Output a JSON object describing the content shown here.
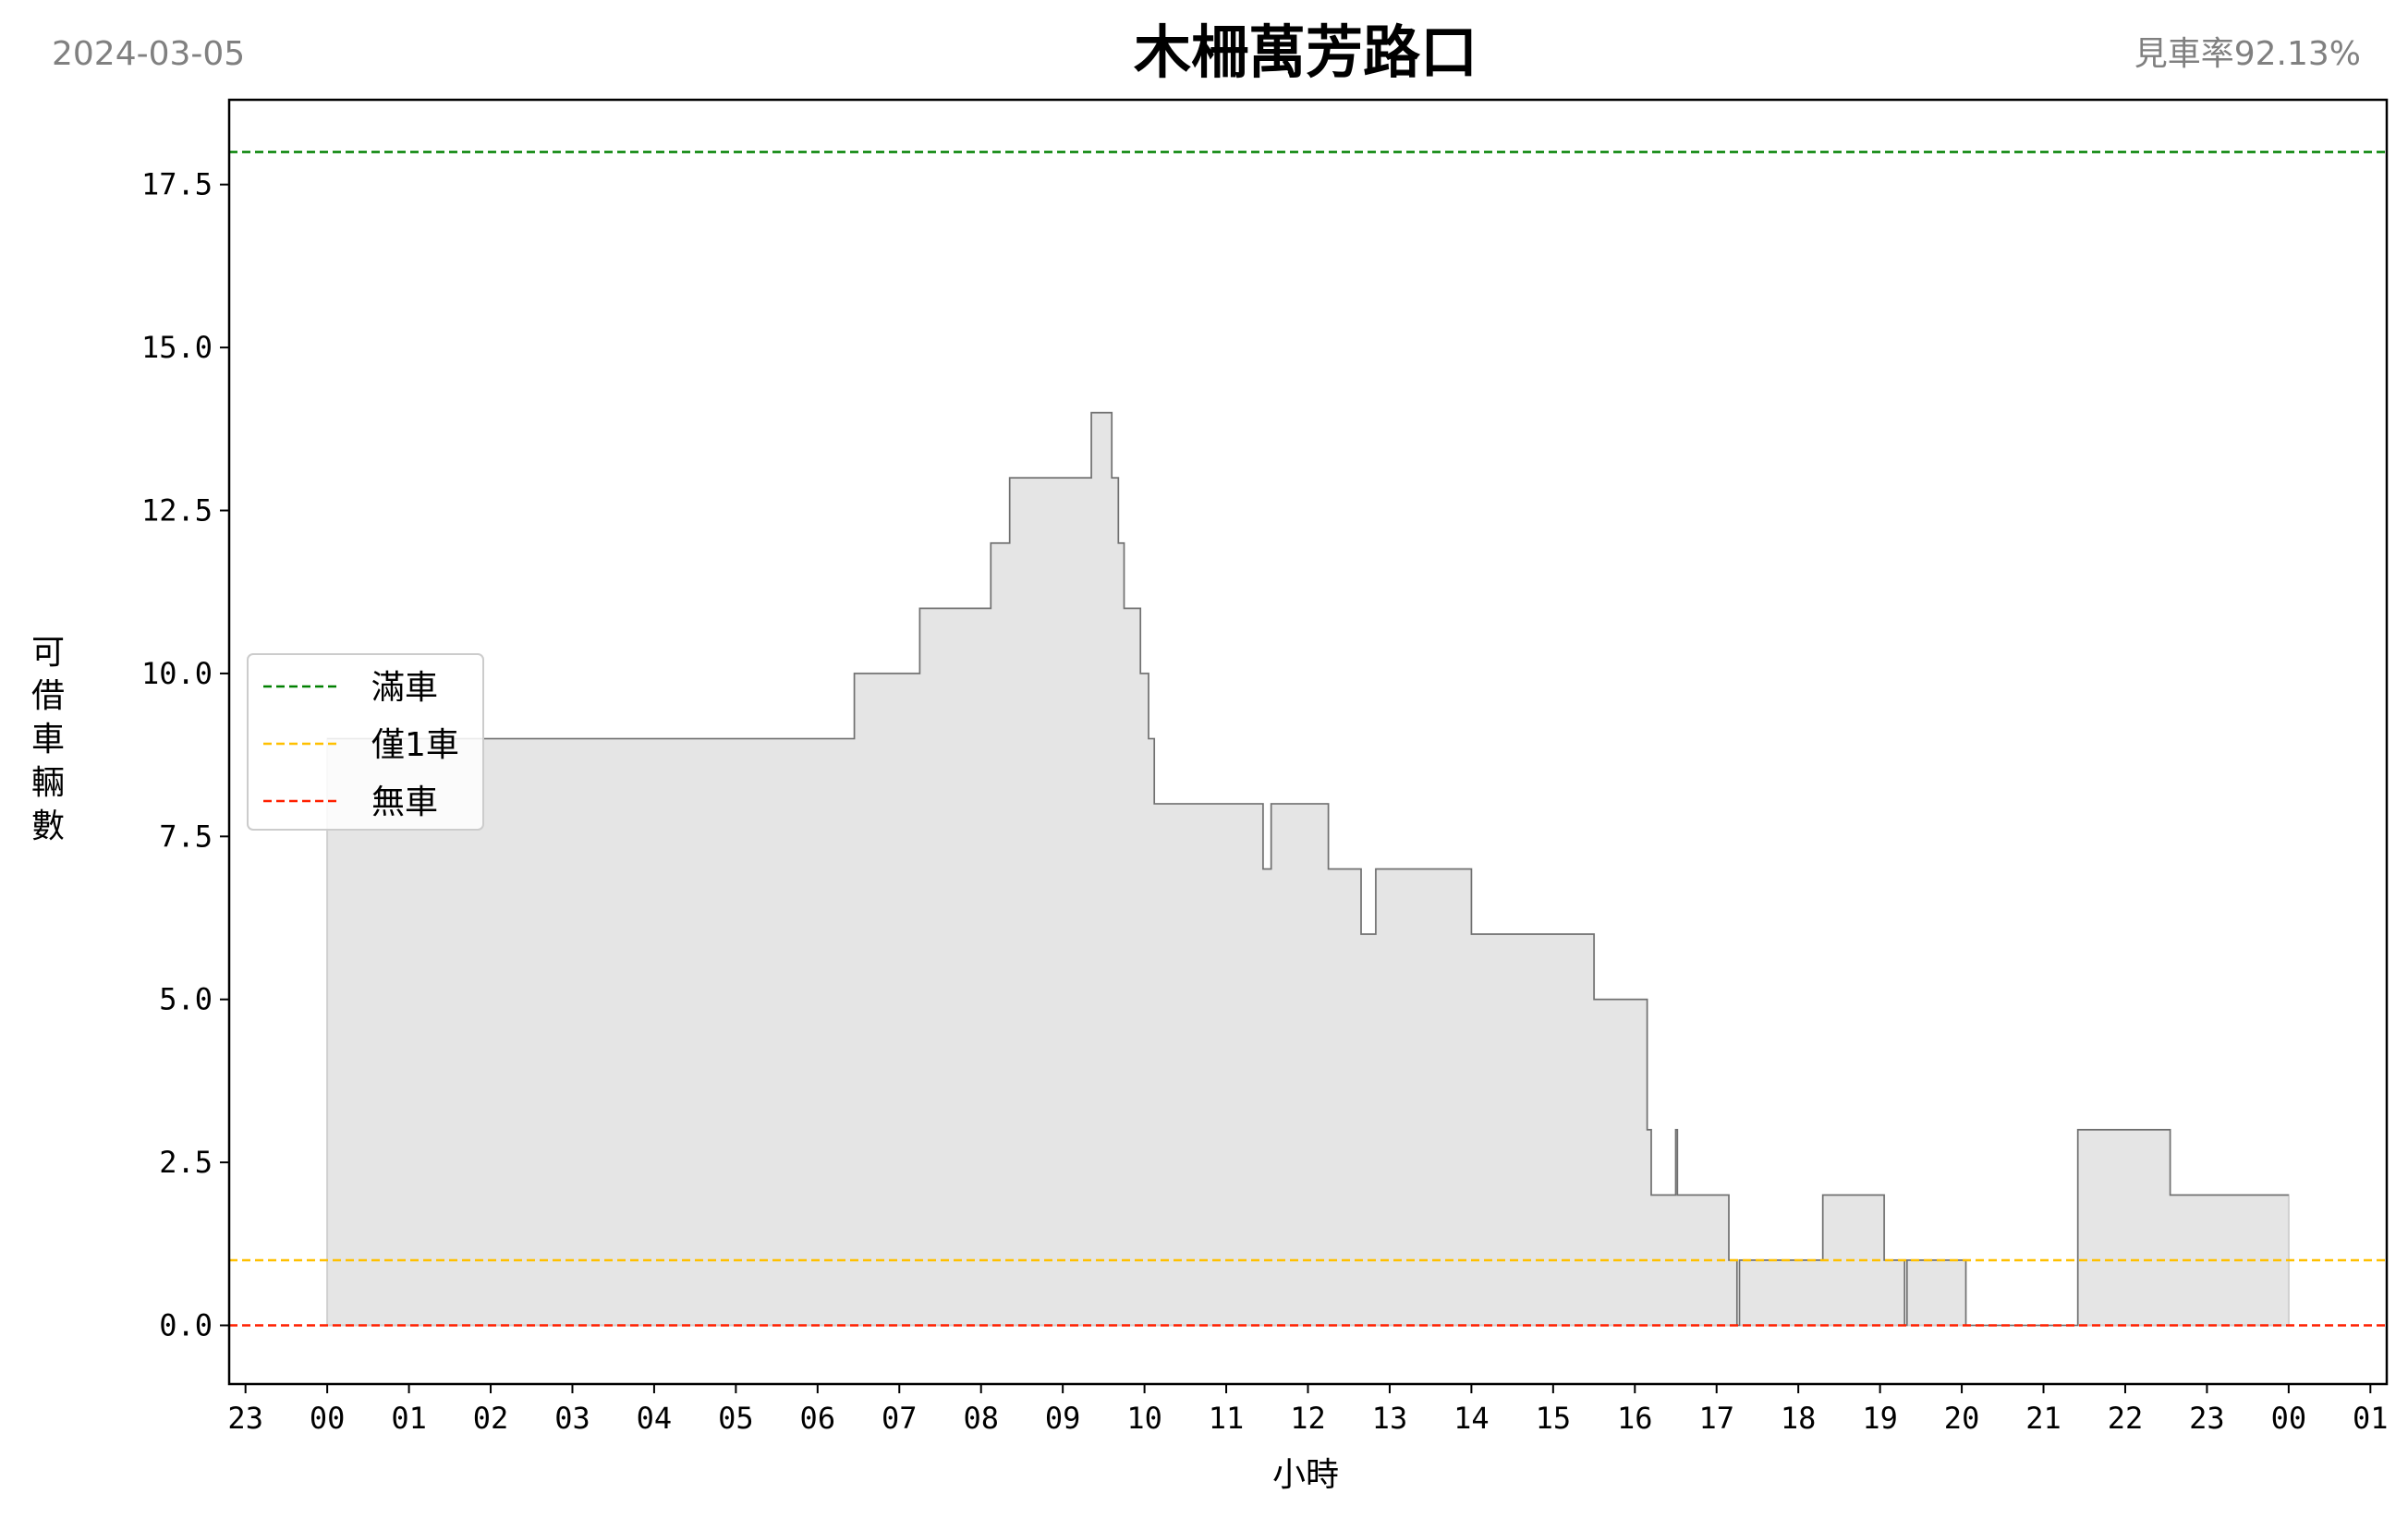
{
  "header": {
    "date": "2024-03-05",
    "title": "木柵萬芳路口",
    "rate": "見車率92.13%"
  },
  "chart_data": {
    "type": "area",
    "title": "木柵萬芳路口",
    "xlabel": "小時",
    "ylabel": "可借車輛數",
    "xlim": [
      -1.2,
      25.2
    ],
    "ylim": [
      -0.9,
      18.8
    ],
    "x_ticks": [
      -1,
      0,
      1,
      2,
      3,
      4,
      5,
      6,
      7,
      8,
      9,
      10,
      11,
      12,
      13,
      14,
      15,
      16,
      17,
      18,
      19,
      20,
      21,
      22,
      23,
      24,
      25
    ],
    "x_tick_labels": [
      "23",
      "00",
      "01",
      "02",
      "03",
      "04",
      "05",
      "06",
      "07",
      "08",
      "09",
      "10",
      "11",
      "12",
      "13",
      "14",
      "15",
      "16",
      "17",
      "18",
      "19",
      "20",
      "21",
      "22",
      "23",
      "00",
      "01"
    ],
    "y_ticks": [
      0,
      2.5,
      5,
      7.5,
      10,
      12.5,
      15,
      17.5
    ],
    "y_tick_labels": [
      "0.0",
      "2.5",
      "5.0",
      "7.5",
      "10.0",
      "12.5",
      "15.0",
      "17.5"
    ],
    "reference_lines": [
      {
        "name": "滿車",
        "value": 18,
        "color": "#008000"
      },
      {
        "name": "僅1車",
        "value": 1,
        "color": "#FFC000"
      },
      {
        "name": "無車",
        "value": 0,
        "color": "#FF2000"
      }
    ],
    "series": [
      {
        "name": "available_bikes",
        "fill": "#e5e5e5",
        "line": "#707070",
        "points": [
          [
            0,
            0
          ],
          [
            0,
            9
          ],
          [
            6.45,
            9
          ],
          [
            6.45,
            10
          ],
          [
            7.25,
            10
          ],
          [
            7.25,
            11
          ],
          [
            8.12,
            11
          ],
          [
            8.12,
            12
          ],
          [
            8.35,
            12
          ],
          [
            8.35,
            13
          ],
          [
            9.35,
            13
          ],
          [
            9.35,
            14
          ],
          [
            9.6,
            14
          ],
          [
            9.6,
            13
          ],
          [
            9.68,
            13
          ],
          [
            9.68,
            12
          ],
          [
            9.75,
            12
          ],
          [
            9.75,
            11
          ],
          [
            9.95,
            11
          ],
          [
            9.95,
            10
          ],
          [
            10.05,
            10
          ],
          [
            10.05,
            9
          ],
          [
            10.12,
            9
          ],
          [
            10.12,
            8
          ],
          [
            11.45,
            8
          ],
          [
            11.45,
            7
          ],
          [
            11.55,
            7
          ],
          [
            11.55,
            8
          ],
          [
            12.25,
            8
          ],
          [
            12.25,
            7
          ],
          [
            12.65,
            7
          ],
          [
            12.65,
            6
          ],
          [
            12.83,
            6
          ],
          [
            12.83,
            7
          ],
          [
            14.0,
            7
          ],
          [
            14.0,
            6
          ],
          [
            15.5,
            6
          ],
          [
            15.5,
            5
          ],
          [
            16.15,
            5
          ],
          [
            16.15,
            3
          ],
          [
            16.2,
            3
          ],
          [
            16.2,
            2
          ],
          [
            16.5,
            2
          ],
          [
            16.5,
            3
          ],
          [
            16.52,
            3
          ],
          [
            16.52,
            2
          ],
          [
            17.15,
            2
          ],
          [
            17.15,
            1
          ],
          [
            17.25,
            1
          ],
          [
            17.25,
            0
          ],
          [
            17.28,
            0
          ],
          [
            17.28,
            1
          ],
          [
            18.3,
            1
          ],
          [
            18.3,
            2
          ],
          [
            19.05,
            2
          ],
          [
            19.05,
            1
          ],
          [
            19.3,
            1
          ],
          [
            19.3,
            0
          ],
          [
            19.33,
            0
          ],
          [
            19.33,
            1
          ],
          [
            20.05,
            1
          ],
          [
            20.05,
            0
          ],
          [
            21.42,
            0
          ],
          [
            21.42,
            3
          ],
          [
            22.55,
            3
          ],
          [
            22.55,
            2
          ],
          [
            24.0,
            2
          ],
          [
            24.0,
            0
          ]
        ]
      }
    ],
    "legend": {
      "position": "left",
      "entries": [
        "滿車",
        "僅1車",
        "無車"
      ]
    }
  }
}
